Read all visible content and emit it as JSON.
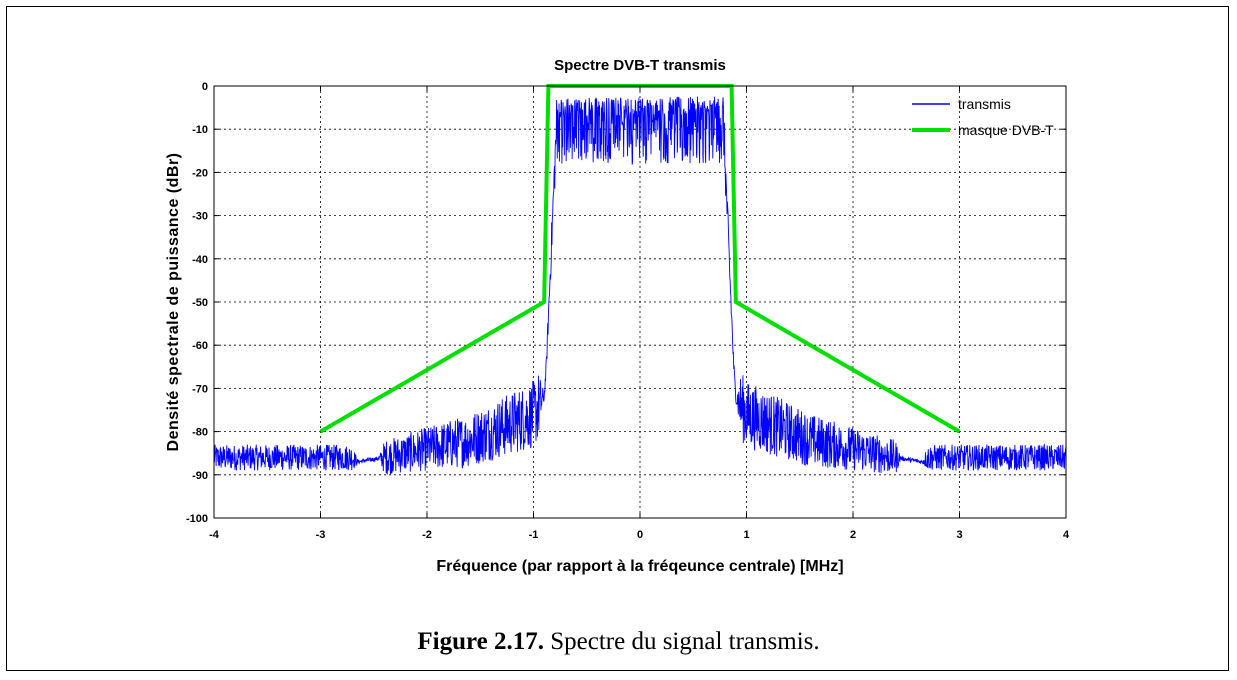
{
  "chart_data": {
    "type": "line",
    "title": "Spectre DVB-T transmis",
    "xlabel": "Fréquence (par rapport à la fréqeunce centrale) [MHz]",
    "ylabel": "Densité spectrale de puissance (dBr)",
    "xlim": [
      -4,
      4
    ],
    "ylim": [
      -100,
      0
    ],
    "xticks": [
      "-4",
      "-3",
      "-2",
      "-1",
      "0",
      "1",
      "2",
      "3",
      "4"
    ],
    "yticks": [
      "0",
      "-10",
      "-20",
      "-30",
      "-40",
      "-50",
      "-60",
      "-70",
      "-80",
      "-90",
      "-100"
    ],
    "grid": true,
    "legend_position": "top-right",
    "series": [
      {
        "name": "transmis",
        "color": "#0000ff",
        "style": "noisy-spectrum",
        "envelope": {
          "x": [
            -4,
            -2.7,
            -2.65,
            -2.4,
            -1.6,
            -1.0,
            -0.9,
            -0.88,
            -0.82,
            -0.78,
            0.78,
            0.82,
            0.88,
            0.9,
            1.0,
            1.6,
            2.4,
            2.65,
            2.7,
            4
          ],
          "y": [
            -86,
            -86,
            -87,
            -86,
            -82,
            -76,
            -72,
            -65,
            -30,
            -7,
            -7,
            -30,
            -65,
            -72,
            -76,
            -82,
            -86,
            -87,
            -86,
            -86
          ]
        },
        "noise_amplitude_db": {
          "x": [
            -4,
            -2.7,
            -2.65,
            -2.45,
            -2.4,
            -0.95,
            -0.9,
            -0.78,
            0.78,
            0.9,
            0.95,
            2.4,
            2.45,
            2.65,
            2.7,
            4
          ],
          "y": [
            3,
            3,
            0.5,
            0.5,
            4,
            8,
            1,
            7,
            7,
            1,
            8,
            4,
            0.5,
            0.5,
            3,
            3
          ]
        }
      },
      {
        "name": "masque DVB-T",
        "color": "#00e000",
        "x": [
          -3,
          -0.9,
          -0.86,
          0.86,
          0.9,
          3
        ],
        "y": [
          -80,
          -50,
          0,
          0,
          -50,
          -80
        ]
      }
    ]
  },
  "caption": {
    "label": "Figure 2.17.",
    "text": " Spectre du signal transmis."
  }
}
